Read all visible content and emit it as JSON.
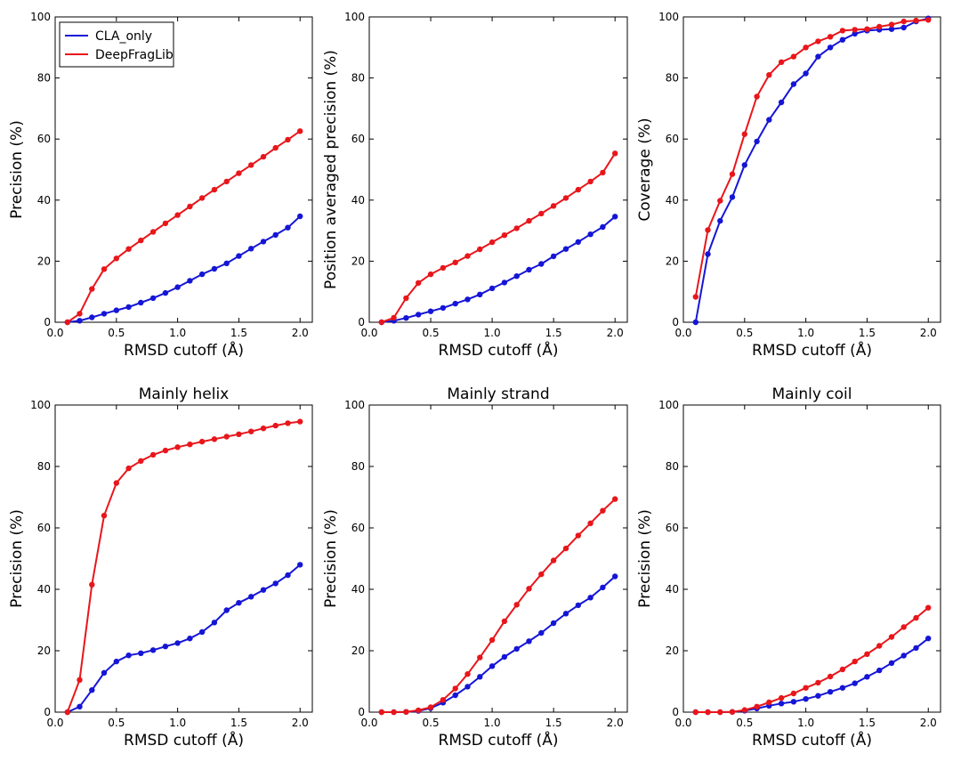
{
  "colors": {
    "CLA_only": "#1515d6",
    "DeepFragLib": "#e8161b",
    "axis": "#000000"
  },
  "legend": {
    "entries": [
      "CLA_only",
      "DeepFragLib"
    ],
    "placement": "top-left"
  },
  "chart_data": [
    {
      "type": "line",
      "title": "",
      "xlabel": "RMSD cutoff (Å)",
      "ylabel": "Precision (%)",
      "xlim": [
        0,
        2.1
      ],
      "ylim": [
        0,
        100
      ],
      "xticks": [
        "0.0",
        "0.5",
        "1.0",
        "1.5",
        "2.0"
      ],
      "yticks": [
        "0",
        "20",
        "40",
        "60",
        "80",
        "100"
      ],
      "show_legend": true,
      "x": [
        0.1,
        0.2,
        0.3,
        0.4,
        0.5,
        0.6,
        0.7,
        0.8,
        0.9,
        1.0,
        1.1,
        1.2,
        1.3,
        1.4,
        1.5,
        1.6,
        1.7,
        1.8,
        1.9,
        2.0
      ],
      "series": [
        {
          "name": "CLA_only",
          "values": [
            0,
            0.5,
            1.6,
            2.8,
            3.9,
            5.0,
            6.4,
            7.9,
            9.6,
            11.5,
            13.6,
            15.7,
            17.5,
            19.3,
            21.7,
            24.1,
            26.4,
            28.6,
            31.0,
            34.7
          ]
        },
        {
          "name": "DeepFragLib",
          "values": [
            0,
            2.8,
            10.9,
            17.4,
            20.9,
            24.0,
            26.8,
            29.6,
            32.4,
            35.1,
            37.9,
            40.7,
            43.4,
            46.1,
            48.8,
            51.5,
            54.2,
            57.1,
            59.8,
            62.6
          ]
        }
      ]
    },
    {
      "type": "line",
      "title": "",
      "xlabel": "RMSD cutoff (Å)",
      "ylabel": "Position averaged precision (%)",
      "xlim": [
        0,
        2.1
      ],
      "ylim": [
        0,
        100
      ],
      "xticks": [
        "0.0",
        "0.5",
        "1.0",
        "1.5",
        "2.0"
      ],
      "yticks": [
        "0",
        "20",
        "40",
        "60",
        "80",
        "100"
      ],
      "show_legend": false,
      "x": [
        0.1,
        0.2,
        0.3,
        0.4,
        0.5,
        0.6,
        0.7,
        0.8,
        0.9,
        1.0,
        1.1,
        1.2,
        1.3,
        1.4,
        1.5,
        1.6,
        1.7,
        1.8,
        1.9,
        2.0
      ],
      "series": [
        {
          "name": "CLA_only",
          "values": [
            0,
            0.5,
            1.4,
            2.5,
            3.6,
            4.7,
            6.1,
            7.5,
            9.1,
            11.1,
            13.0,
            15.1,
            17.2,
            19.1,
            21.6,
            24.0,
            26.3,
            28.8,
            31.2,
            34.6
          ]
        },
        {
          "name": "DeepFragLib",
          "values": [
            0,
            1.5,
            7.9,
            12.9,
            15.7,
            17.8,
            19.6,
            21.7,
            23.9,
            26.2,
            28.5,
            30.8,
            33.2,
            35.6,
            38.1,
            40.7,
            43.4,
            46.1,
            49.0,
            55.3
          ]
        }
      ]
    },
    {
      "type": "line",
      "title": "",
      "xlabel": "RMSD cutoff (Å)",
      "ylabel": "Coverage (%)",
      "xlim": [
        0,
        2.1
      ],
      "ylim": [
        0,
        100
      ],
      "xticks": [
        "0.0",
        "0.5",
        "1.0",
        "1.5",
        "2.0"
      ],
      "yticks": [
        "0",
        "20",
        "40",
        "60",
        "80",
        "100"
      ],
      "show_legend": false,
      "x": [
        0.1,
        0.2,
        0.3,
        0.4,
        0.5,
        0.6,
        0.7,
        0.8,
        0.9,
        1.0,
        1.1,
        1.2,
        1.3,
        1.4,
        1.5,
        1.6,
        1.7,
        1.8,
        1.9,
        2.0
      ],
      "series": [
        {
          "name": "CLA_only",
          "values": [
            0,
            22.3,
            33.2,
            41.0,
            51.5,
            59.2,
            66.3,
            72.0,
            78.0,
            81.5,
            87.0,
            90.0,
            92.5,
            94.5,
            95.5,
            95.8,
            96.0,
            96.5,
            98.5,
            99.5
          ]
        },
        {
          "name": "DeepFragLib",
          "values": [
            8.3,
            30.2,
            39.8,
            48.5,
            61.6,
            73.9,
            81.0,
            85.2,
            87.0,
            90.0,
            92.0,
            93.5,
            95.5,
            95.8,
            96.0,
            96.8,
            97.5,
            98.5,
            98.8,
            99.0
          ]
        }
      ]
    },
    {
      "type": "line",
      "title": "Mainly helix",
      "xlabel": "RMSD cutoff (Å)",
      "ylabel": "Precision (%)",
      "xlim": [
        0,
        2.1
      ],
      "ylim": [
        0,
        100
      ],
      "xticks": [
        "0.0",
        "0.5",
        "1.0",
        "1.5",
        "2.0"
      ],
      "yticks": [
        "0",
        "20",
        "40",
        "60",
        "80",
        "100"
      ],
      "show_legend": false,
      "x": [
        0.1,
        0.2,
        0.3,
        0.4,
        0.5,
        0.6,
        0.7,
        0.8,
        0.9,
        1.0,
        1.1,
        1.2,
        1.3,
        1.4,
        1.5,
        1.6,
        1.7,
        1.8,
        1.9,
        2.0
      ],
      "series": [
        {
          "name": "CLA_only",
          "values": [
            0,
            1.8,
            7.2,
            12.8,
            16.5,
            18.5,
            19.2,
            20.2,
            21.4,
            22.5,
            24.0,
            26.1,
            29.2,
            33.2,
            35.6,
            37.6,
            39.8,
            41.9,
            44.6,
            48.0
          ]
        },
        {
          "name": "DeepFragLib",
          "values": [
            0,
            10.5,
            41.5,
            64.0,
            74.6,
            79.4,
            81.8,
            83.8,
            85.2,
            86.3,
            87.2,
            88.1,
            88.9,
            89.7,
            90.5,
            91.4,
            92.4,
            93.3,
            94.1,
            94.6
          ]
        }
      ]
    },
    {
      "type": "line",
      "title": "Mainly strand",
      "xlabel": "RMSD cutoff (Å)",
      "ylabel": "Precision (%)",
      "xlim": [
        0,
        2.1
      ],
      "ylim": [
        0,
        100
      ],
      "xticks": [
        "0.0",
        "0.5",
        "1.0",
        "1.5",
        "2.0"
      ],
      "yticks": [
        "0",
        "20",
        "40",
        "60",
        "80",
        "100"
      ],
      "show_legend": false,
      "x": [
        0.1,
        0.2,
        0.3,
        0.4,
        0.5,
        0.6,
        0.7,
        0.8,
        0.9,
        1.0,
        1.1,
        1.2,
        1.3,
        1.4,
        1.5,
        1.6,
        1.7,
        1.8,
        1.9,
        2.0
      ],
      "series": [
        {
          "name": "CLA_only",
          "values": [
            0,
            0,
            0.1,
            0.4,
            1.3,
            3.1,
            5.5,
            8.3,
            11.5,
            15.0,
            18.0,
            20.6,
            23.1,
            25.8,
            29.0,
            32.1,
            34.8,
            37.3,
            40.6,
            44.2
          ]
        },
        {
          "name": "DeepFragLib",
          "values": [
            0,
            0,
            0.1,
            0.6,
            1.6,
            4.0,
            7.7,
            12.4,
            17.8,
            23.5,
            29.6,
            35.0,
            40.2,
            44.9,
            49.4,
            53.3,
            57.5,
            61.5,
            65.6,
            69.4
          ]
        }
      ]
    },
    {
      "type": "line",
      "title": "Mainly coil",
      "xlabel": "RMSD cutoff (Å)",
      "ylabel": "Precision (%)",
      "xlim": [
        0,
        2.1
      ],
      "ylim": [
        0,
        100
      ],
      "xticks": [
        "0.0",
        "0.5",
        "1.0",
        "1.5",
        "2.0"
      ],
      "yticks": [
        "0",
        "20",
        "40",
        "60",
        "80",
        "100"
      ],
      "show_legend": false,
      "x": [
        0.1,
        0.2,
        0.3,
        0.4,
        0.5,
        0.6,
        0.7,
        0.8,
        0.9,
        1.0,
        1.1,
        1.2,
        1.3,
        1.4,
        1.5,
        1.6,
        1.7,
        1.8,
        1.9,
        2.0
      ],
      "series": [
        {
          "name": "CLA_only",
          "values": [
            0,
            0,
            0,
            0.1,
            0.5,
            1.2,
            2.1,
            2.8,
            3.4,
            4.3,
            5.3,
            6.6,
            7.9,
            9.4,
            11.5,
            13.6,
            16.0,
            18.4,
            20.9,
            24.0
          ]
        },
        {
          "name": "DeepFragLib",
          "values": [
            0,
            0,
            0,
            0.1,
            0.7,
            1.8,
            3.2,
            4.6,
            6.1,
            7.9,
            9.6,
            11.6,
            13.9,
            16.5,
            18.9,
            21.6,
            24.5,
            27.7,
            30.7,
            34.0
          ]
        }
      ]
    }
  ]
}
